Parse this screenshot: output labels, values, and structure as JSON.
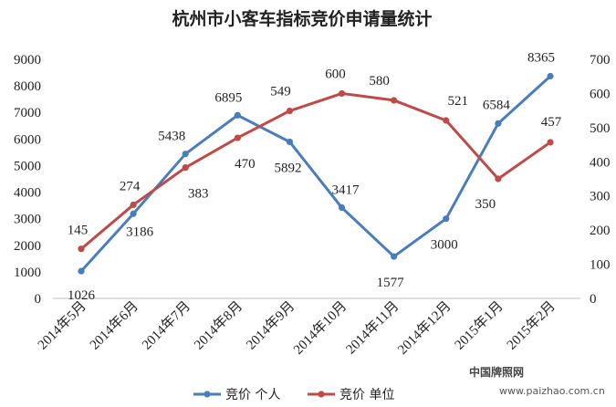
{
  "chart_data": {
    "type": "line",
    "title": "杭州市小客车指标竞价申请量统计",
    "categories": [
      "2014年5月",
      "2014年6月",
      "2014年7月",
      "2014年8月",
      "2014年9月",
      "2014年10月",
      "2014年11月",
      "2014年12月",
      "2015年1月",
      "2015年2月"
    ],
    "series": [
      {
        "name": "竞价 个人",
        "axis": "left",
        "color": "#4a7ebb",
        "values": [
          1026,
          3186,
          5438,
          6895,
          5892,
          3417,
          1577,
          3000,
          6584,
          8365
        ]
      },
      {
        "name": "竞价 单位",
        "axis": "right",
        "color": "#be4b48",
        "values": [
          145,
          274,
          383,
          470,
          549,
          600,
          580,
          521,
          350,
          457
        ]
      }
    ],
    "ylim_left": [
      0,
      9000
    ],
    "ylim_right": [
      0,
      700
    ],
    "yticks_left": [
      0,
      1000,
      2000,
      3000,
      4000,
      5000,
      6000,
      7000,
      8000,
      9000
    ],
    "yticks_right": [
      0,
      100,
      200,
      300,
      400,
      500,
      600,
      700
    ],
    "grid": false,
    "legend_position": "bottom"
  },
  "watermark": {
    "site_name": "中国牌照网",
    "url": "www.paizhao.com.cn"
  }
}
